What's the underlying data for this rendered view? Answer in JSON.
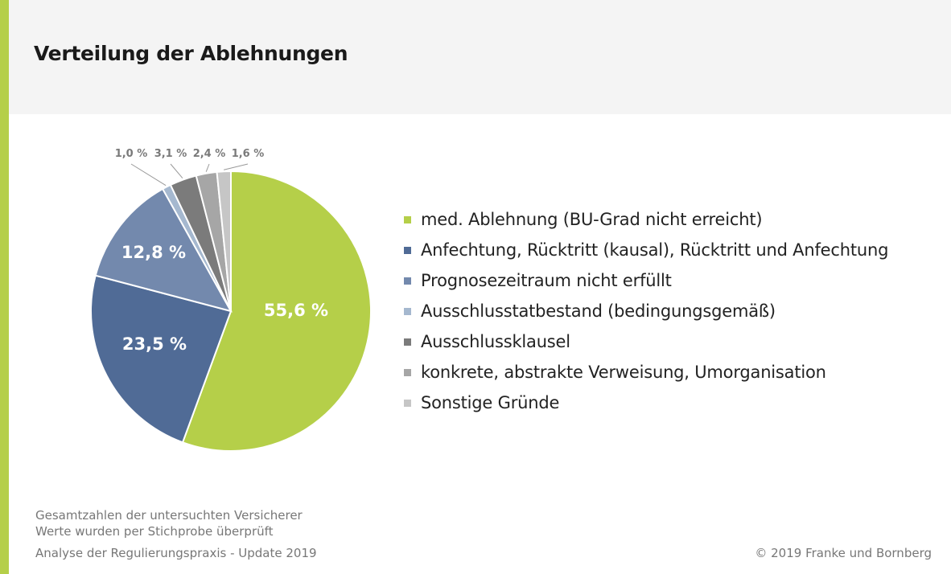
{
  "header": {
    "title": "Verteilung der Ablehnungen"
  },
  "chart_data": {
    "type": "pie",
    "title": "Verteilung der Ablehnungen",
    "slices": [
      {
        "label": "med. Ablehnung (BU-Grad nicht erreicht)",
        "value": 55.6,
        "display": "55,6 %",
        "color": "#b5cf49",
        "label_placement": "inside"
      },
      {
        "label": "Anfechtung, Rücktritt (kausal), Rücktritt und Anfechtung",
        "value": 23.5,
        "display": "23,5 %",
        "color": "#506b96",
        "label_placement": "inside"
      },
      {
        "label": "Prognosezeitraum nicht erfüllt",
        "value": 12.8,
        "display": "12,8 %",
        "color": "#7389ad",
        "label_placement": "inside"
      },
      {
        "label": "Ausschlusstatbestand (bedingungsgemäß)",
        "value": 1.0,
        "display": "1,0 %",
        "color": "#a5b8cf",
        "label_placement": "outside"
      },
      {
        "label": "Ausschlussklausel",
        "value": 3.1,
        "display": "3,1 %",
        "color": "#7b7b7b",
        "label_placement": "outside"
      },
      {
        "label": "konkrete, abstrakte Verweisung, Umorganisation",
        "value": 2.4,
        "display": "2,4 %",
        "color": "#a6a6a6",
        "label_placement": "outside"
      },
      {
        "label": "Sonstige Gründe",
        "value": 1.6,
        "display": "1,6 %",
        "color": "#c6c6c6",
        "label_placement": "outside"
      }
    ],
    "legend_position": "right",
    "start_angle": "12 o'clock",
    "direction": "clockwise"
  },
  "legend": {
    "items": [
      {
        "label": "med. Ablehnung (BU-Grad nicht erreicht)",
        "color": "#b5cf49"
      },
      {
        "label": "Anfechtung, Rücktritt (kausal), Rücktritt und Anfechtung",
        "color": "#506b96"
      },
      {
        "label": "Prognosezeitraum nicht erfüllt",
        "color": "#7389ad"
      },
      {
        "label": "Ausschlusstatbestand (bedingungsgemäß)",
        "color": "#a5b8cf"
      },
      {
        "label": "Ausschlussklausel",
        "color": "#7b7b7b"
      },
      {
        "label": "konkrete, abstrakte Verweisung, Umorganisation",
        "color": "#a6a6a6"
      },
      {
        "label": "Sonstige Gründe",
        "color": "#c6c6c6"
      }
    ]
  },
  "footer": {
    "note_1": "Gesamtzahlen der untersuchten Versicherer",
    "note_2": "Werte wurden per Stichprobe überprüft",
    "note_3": "Analyse der Regulierungspraxis - Update 2019",
    "copyright": "© 2019 Franke und Bornberg"
  },
  "colors": {
    "accent": "#b5cf49",
    "header_background": "#f4f4f4"
  }
}
